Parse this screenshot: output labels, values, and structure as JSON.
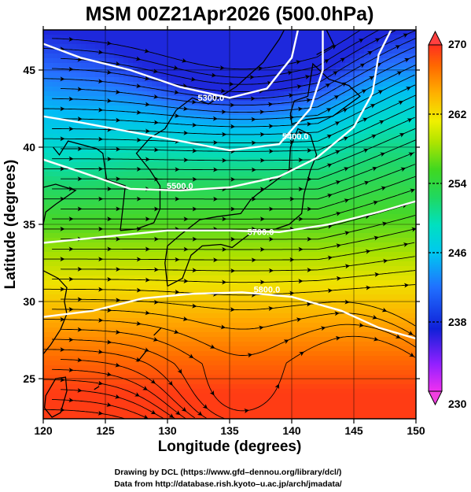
{
  "title": "MSM 00Z21Apr2026 (500.0hPa)",
  "xlabel": "Longitude (degrees)",
  "ylabel": "Latitude  (degrees)",
  "credits": [
    "Drawing by DCL (https://www.gfd–dennou.org/library/dcl/)",
    "Data from http://database.rish.kyoto–u.ac.jp/arch/jmadata/"
  ],
  "map": {
    "lon_range": [
      120,
      150
    ],
    "lat_range": [
      22.4,
      47.6
    ],
    "lon_ticks": [
      "120",
      "125",
      "130",
      "135",
      "140",
      "145",
      "150"
    ],
    "lat_ticks": [
      "25",
      "30",
      "35",
      "40",
      "45"
    ],
    "grid": true,
    "fill_field": "temperature",
    "streamlines": "wind",
    "contour_field": "geopotential height",
    "contour_labels": [
      {
        "text": "5300.0",
        "lon": 133.5,
        "lat": 43.0
      },
      {
        "text": "5400.0",
        "lon": 140.3,
        "lat": 40.5
      },
      {
        "text": "5500.0",
        "lon": 131.0,
        "lat": 37.3
      },
      {
        "text": "5700.0",
        "lon": 137.5,
        "lat": 34.3
      },
      {
        "text": "5800.0",
        "lon": 138.0,
        "lat": 30.6
      }
    ]
  },
  "colorbar": {
    "min": 230,
    "max": 270,
    "tick_labels": [
      "270",
      "262",
      "254",
      "246",
      "238",
      "230"
    ],
    "colors": [
      "#ff40ff",
      "#a020ff",
      "#1020e0",
      "#2060ff",
      "#00b0ff",
      "#00e0e0",
      "#10e090",
      "#30d820",
      "#a0e000",
      "#e8f000",
      "#ffb000",
      "#ff7000",
      "#ff3000",
      "#ff4060"
    ]
  }
}
